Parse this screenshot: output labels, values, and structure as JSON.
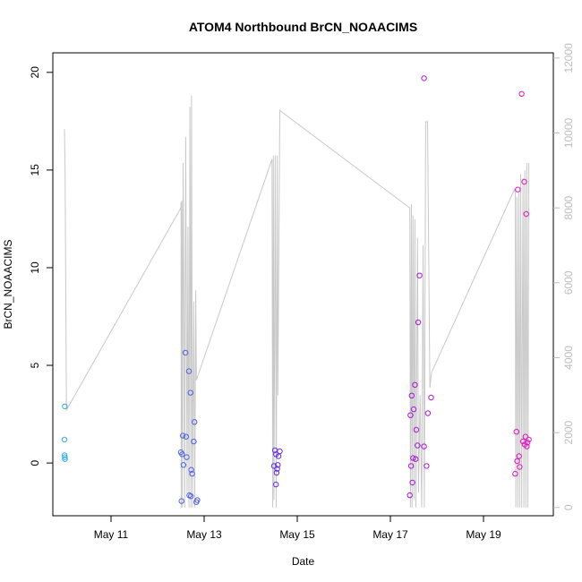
{
  "chart_data": {
    "type": "scatter",
    "title": "ATOM4 Northbound BrCN_NOAACIMS",
    "xlabel": "Date",
    "ylabel": "BrCN_NOAACIMS",
    "x_domain": [
      "2018-05-09T18:00",
      "2018-05-20T12:00"
    ],
    "x_ticks": [
      {
        "date": "2018-05-11",
        "label": "May 11"
      },
      {
        "date": "2018-05-13",
        "label": "May 13"
      },
      {
        "date": "2018-05-15",
        "label": "May 15"
      },
      {
        "date": "2018-05-17",
        "label": "May 17"
      },
      {
        "date": "2018-05-19",
        "label": "May 19"
      }
    ],
    "y_domain": [
      -2.7,
      21.0
    ],
    "y_ticks": [
      0,
      5,
      10,
      15,
      20
    ],
    "y2_domain": [
      -220,
      12140
    ],
    "y2_ticks": [
      0,
      2000,
      4000,
      6000,
      8000,
      10000,
      12000
    ],
    "colors": {
      "point_start": "#31b4e8",
      "point_mid": "#6a1be0",
      "point_end": "#f214c2",
      "line": "#c8c8c8",
      "axis": "#000000",
      "right_axis": "#bdbdbd"
    },
    "points": [
      {
        "x": "2018-05-10T00:10",
        "y": 2.9
      },
      {
        "x": "2018-05-10T00:00",
        "y": 1.2
      },
      {
        "x": "2018-05-10T00:05",
        "y": 0.4
      },
      {
        "x": "2018-05-10T00:10",
        "y": 0.3
      },
      {
        "x": "2018-05-10T00:15",
        "y": 0.2
      },
      {
        "x": "2018-05-12T14:20",
        "y": 5.65
      },
      {
        "x": "2018-05-12T16:10",
        "y": 4.7
      },
      {
        "x": "2018-05-12T17:00",
        "y": 3.6
      },
      {
        "x": "2018-05-12T19:00",
        "y": 2.1
      },
      {
        "x": "2018-05-12T13:00",
        "y": 1.4
      },
      {
        "x": "2018-05-12T14:40",
        "y": 1.35
      },
      {
        "x": "2018-05-12T18:40",
        "y": 1.1
      },
      {
        "x": "2018-05-12T12:00",
        "y": 0.55
      },
      {
        "x": "2018-05-12T12:40",
        "y": 0.45
      },
      {
        "x": "2018-05-12T15:00",
        "y": 0.3
      },
      {
        "x": "2018-05-12T13:20",
        "y": -0.1
      },
      {
        "x": "2018-05-12T17:20",
        "y": -0.35
      },
      {
        "x": "2018-05-12T17:50",
        "y": -0.55
      },
      {
        "x": "2018-05-12T16:20",
        "y": -1.65
      },
      {
        "x": "2018-05-12T17:10",
        "y": -1.7
      },
      {
        "x": "2018-05-12T12:20",
        "y": -1.95
      },
      {
        "x": "2018-05-12T20:30",
        "y": -1.9
      },
      {
        "x": "2018-05-12T20:00",
        "y": -2.0
      },
      {
        "x": "2018-05-14T12:30",
        "y": 0.65
      },
      {
        "x": "2018-05-14T15:00",
        "y": 0.6
      },
      {
        "x": "2018-05-14T13:00",
        "y": 0.45
      },
      {
        "x": "2018-05-14T14:20",
        "y": 0.35
      },
      {
        "x": "2018-05-14T12:00",
        "y": -0.15
      },
      {
        "x": "2018-05-14T14:00",
        "y": -0.1
      },
      {
        "x": "2018-05-14T13:40",
        "y": -0.3
      },
      {
        "x": "2018-05-14T13:20",
        "y": -0.5
      },
      {
        "x": "2018-05-14T13:00",
        "y": -1.1
      },
      {
        "x": "2018-05-17T17:20",
        "y": 19.7
      },
      {
        "x": "2018-05-17T15:00",
        "y": 9.6
      },
      {
        "x": "2018-05-17T14:20",
        "y": 7.2
      },
      {
        "x": "2018-05-17T12:40",
        "y": 4.0
      },
      {
        "x": "2018-05-17T11:00",
        "y": 3.45
      },
      {
        "x": "2018-05-17T21:00",
        "y": 3.35
      },
      {
        "x": "2018-05-17T12:00",
        "y": 2.75
      },
      {
        "x": "2018-05-17T19:20",
        "y": 2.55
      },
      {
        "x": "2018-05-17T10:20",
        "y": 2.45
      },
      {
        "x": "2018-05-17T13:20",
        "y": 1.7
      },
      {
        "x": "2018-05-17T14:00",
        "y": 0.9
      },
      {
        "x": "2018-05-17T17:20",
        "y": 0.85
      },
      {
        "x": "2018-05-17T11:40",
        "y": 0.25
      },
      {
        "x": "2018-05-17T13:00",
        "y": 0.2
      },
      {
        "x": "2018-05-17T10:40",
        "y": -0.15
      },
      {
        "x": "2018-05-17T18:40",
        "y": -0.15
      },
      {
        "x": "2018-05-17T11:20",
        "y": -1.0
      },
      {
        "x": "2018-05-17T10:00",
        "y": -1.65
      },
      {
        "x": "2018-05-19T19:40",
        "y": 18.9
      },
      {
        "x": "2018-05-19T21:00",
        "y": 14.4
      },
      {
        "x": "2018-05-19T17:40",
        "y": 14.0
      },
      {
        "x": "2018-05-19T22:00",
        "y": 12.75
      },
      {
        "x": "2018-05-19T17:00",
        "y": 1.6
      },
      {
        "x": "2018-05-19T21:40",
        "y": 1.35
      },
      {
        "x": "2018-05-19T23:20",
        "y": 1.2
      },
      {
        "x": "2018-05-19T20:20",
        "y": 1.1
      },
      {
        "x": "2018-05-19T22:40",
        "y": 1.05
      },
      {
        "x": "2018-05-19T21:10",
        "y": 0.95
      },
      {
        "x": "2018-05-19T22:20",
        "y": 0.85
      },
      {
        "x": "2018-05-19T18:20",
        "y": 0.35
      },
      {
        "x": "2018-05-19T17:20",
        "y": 0.1
      },
      {
        "x": "2018-05-19T18:40",
        "y": -0.2
      },
      {
        "x": "2018-05-19T16:20",
        "y": -0.55
      }
    ],
    "altitude_series": [
      [
        "2018-05-10T00:00",
        10100
      ],
      [
        "2018-05-10T00:20",
        9000
      ],
      [
        "2018-05-10T00:40",
        6000
      ],
      [
        "2018-05-10T01:00",
        2600
      ],
      [
        "2018-05-12T12:00",
        8000
      ],
      [
        "2018-05-12T12:05",
        8150
      ],
      [
        "2018-05-12T12:10",
        0
      ],
      [
        "2018-05-12T12:30",
        8200
      ],
      [
        "2018-05-12T12:50",
        0
      ],
      [
        "2018-05-12T13:10",
        9200
      ],
      [
        "2018-05-12T13:30",
        6000
      ],
      [
        "2018-05-12T14:00",
        0
      ],
      [
        "2018-05-12T14:30",
        9900
      ],
      [
        "2018-05-12T15:10",
        400
      ],
      [
        "2018-05-12T15:40",
        7500
      ],
      [
        "2018-05-12T16:10",
        0
      ],
      [
        "2018-05-12T16:40",
        10700
      ],
      [
        "2018-05-12T17:10",
        0
      ],
      [
        "2018-05-12T17:30",
        11000
      ],
      [
        "2018-05-12T18:00",
        0
      ],
      [
        "2018-05-12T18:40",
        5500
      ],
      [
        "2018-05-12T19:10",
        0
      ],
      [
        "2018-05-12T19:40",
        5800
      ],
      [
        "2018-05-12T20:00",
        3400
      ],
      [
        "2018-05-14T11:00",
        9300
      ],
      [
        "2018-05-14T11:20",
        0
      ],
      [
        "2018-05-14T11:40",
        9400
      ],
      [
        "2018-05-14T12:00",
        200
      ],
      [
        "2018-05-14T12:40",
        9400
      ],
      [
        "2018-05-14T13:10",
        0
      ],
      [
        "2018-05-14T13:40",
        9400
      ],
      [
        "2018-05-14T14:00",
        3000
      ],
      [
        "2018-05-14T15:00",
        10600
      ],
      [
        "2018-05-17T10:00",
        8000
      ],
      [
        "2018-05-17T10:20",
        0
      ],
      [
        "2018-05-17T10:50",
        8100
      ],
      [
        "2018-05-17T11:10",
        0
      ],
      [
        "2018-05-17T11:40",
        7800
      ],
      [
        "2018-05-17T12:10",
        200
      ],
      [
        "2018-05-17T12:40",
        7700
      ],
      [
        "2018-05-17T13:10",
        0
      ],
      [
        "2018-05-17T14:00",
        7200
      ],
      [
        "2018-05-17T14:30",
        400
      ],
      [
        "2018-05-17T15:20",
        3000
      ],
      [
        "2018-05-17T16:10",
        0
      ],
      [
        "2018-05-17T16:50",
        7000
      ],
      [
        "2018-05-17T17:30",
        0
      ],
      [
        "2018-05-17T18:10",
        10300
      ],
      [
        "2018-05-17T19:10",
        10300
      ],
      [
        "2018-05-17T20:20",
        3200
      ],
      [
        "2018-05-17T21:10",
        3600
      ],
      [
        "2018-05-19T16:00",
        8500
      ],
      [
        "2018-05-19T16:20",
        8400
      ],
      [
        "2018-05-19T16:40",
        0
      ],
      [
        "2018-05-19T17:10",
        8300
      ],
      [
        "2018-05-19T17:40",
        0
      ],
      [
        "2018-05-19T18:10",
        8400
      ],
      [
        "2018-05-19T18:40",
        0
      ],
      [
        "2018-05-19T19:10",
        8900
      ],
      [
        "2018-05-19T19:40",
        0
      ],
      [
        "2018-05-19T20:20",
        8800
      ],
      [
        "2018-05-19T20:50",
        0
      ],
      [
        "2018-05-19T21:20",
        9000
      ],
      [
        "2018-05-19T21:50",
        0
      ],
      [
        "2018-05-19T22:20",
        9200
      ],
      [
        "2018-05-19T22:50",
        0
      ],
      [
        "2018-05-19T23:20",
        9200
      ]
    ],
    "grid": false,
    "legend": "none"
  }
}
